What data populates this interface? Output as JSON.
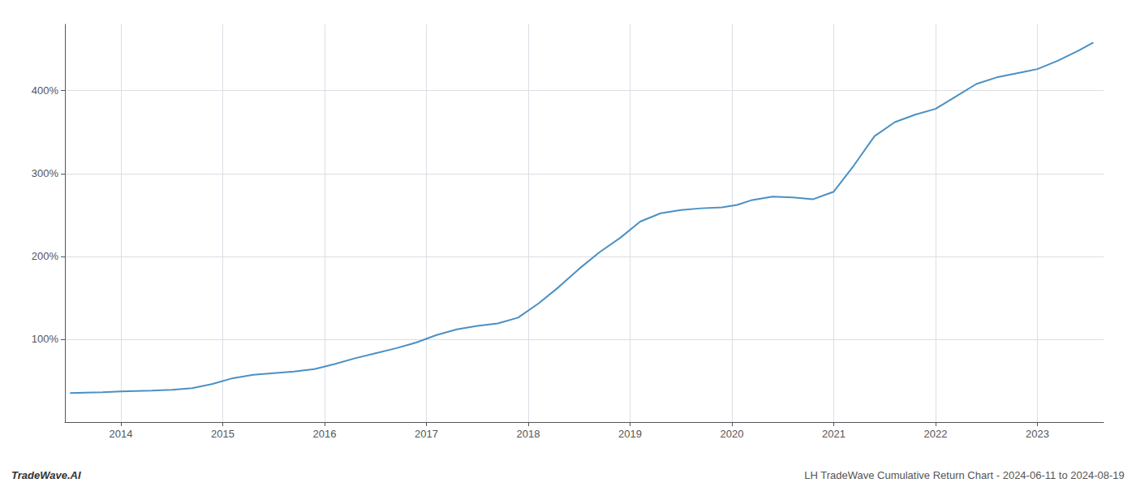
{
  "chart_data": {
    "type": "line",
    "x": [
      2013.5,
      2013.65,
      2013.82,
      2014.0,
      2014.15,
      2014.3,
      2014.5,
      2014.7,
      2014.9,
      2015.1,
      2015.3,
      2015.5,
      2015.7,
      2015.9,
      2016.1,
      2016.3,
      2016.5,
      2016.7,
      2016.9,
      2017.1,
      2017.3,
      2017.5,
      2017.7,
      2017.9,
      2018.1,
      2018.3,
      2018.5,
      2018.7,
      2018.9,
      2019.1,
      2019.3,
      2019.5,
      2019.7,
      2019.9,
      2020.05,
      2020.2,
      2020.4,
      2020.6,
      2020.8,
      2021.0,
      2021.2,
      2021.4,
      2021.6,
      2021.8,
      2022.0,
      2022.2,
      2022.4,
      2022.6,
      2022.8,
      2023.0,
      2023.2,
      2023.4,
      2023.55
    ],
    "values": [
      35,
      35.5,
      36,
      37,
      37.5,
      38,
      39,
      41,
      46,
      53,
      57,
      59,
      61,
      64,
      70,
      77,
      83,
      89,
      96,
      105,
      112,
      116,
      119,
      126,
      143,
      163,
      185,
      205,
      222,
      242,
      252,
      256,
      258,
      259,
      262,
      268,
      272,
      271,
      269,
      278,
      310,
      345,
      362,
      371,
      378,
      393,
      408,
      416,
      421,
      426,
      436,
      448,
      458
    ],
    "color": "#4a90c4",
    "xlim": [
      2013.45,
      2023.65
    ],
    "ylim": [
      0,
      480
    ],
    "xticks": [
      2014,
      2015,
      2016,
      2017,
      2018,
      2019,
      2020,
      2021,
      2022,
      2023
    ],
    "yticks": [
      {
        "value": 100,
        "label": "100%"
      },
      {
        "value": 200,
        "label": "200%"
      },
      {
        "value": 300,
        "label": "300%"
      },
      {
        "value": 400,
        "label": "400%"
      }
    ],
    "grid": true,
    "annotations": [
      "TradeWave.AI",
      "LH TradeWave Cumulative Return Chart - 2024-06-11 to 2024-08-19"
    ]
  }
}
